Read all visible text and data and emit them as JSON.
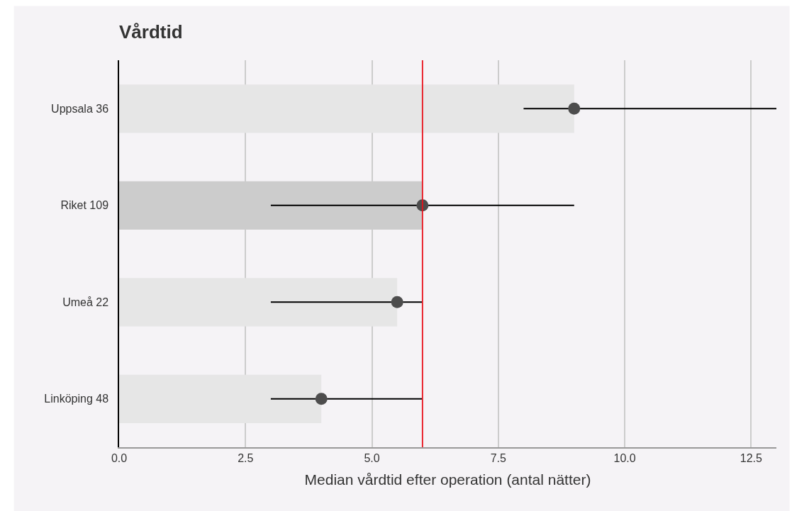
{
  "chart_data": {
    "type": "bar",
    "orientation": "horizontal",
    "title": "Vårdtid",
    "xlabel": "Median vårdtid efter operation (antal nätter)",
    "categories": [
      "Uppsala 36",
      "Riket 109",
      "Umeå 22",
      "Linköping 48"
    ],
    "series": [
      {
        "colors": [
          "#e6e6e6",
          "#cccccc",
          "#e6e6e6",
          "#e6e6e6"
        ],
        "values": [
          9,
          6,
          5.5,
          4
        ]
      },
      {
        "type": "scatter",
        "color": "#4d4d4d",
        "marker": "circle",
        "values": [
          9,
          6,
          5.5,
          4
        ],
        "errors": [
          [
            8,
            13
          ],
          [
            3,
            9
          ],
          [
            3,
            6
          ],
          [
            3,
            6
          ]
        ]
      }
    ],
    "xlim": [
      0,
      13
    ],
    "xticks": [
      {
        "value": 0,
        "label": "0.0"
      },
      2.5,
      {
        "value": 5,
        "label": "5.0"
      },
      7.5,
      {
        "value": 10,
        "label": "10.0"
      },
      12.5
    ],
    "grid": "x",
    "ref_lines": [
      {
        "axis": "x",
        "value": 6,
        "color": "#e8101a"
      }
    ]
  }
}
